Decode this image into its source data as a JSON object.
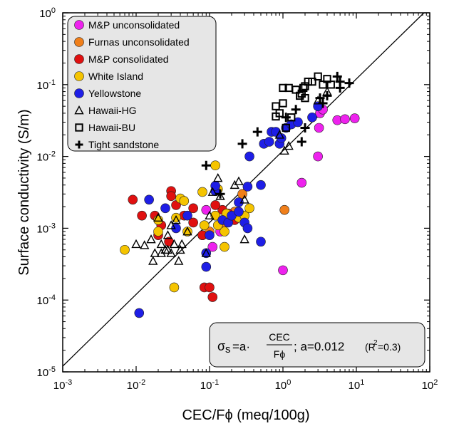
{
  "chart_data": {
    "type": "scatter",
    "xlabel": "CEC/Fϕ (meq/100g)",
    "ylabel": "Surface conductivity (S/m)",
    "xscale": "log",
    "yscale": "log",
    "xlim": [
      0.001,
      100
    ],
    "ylim": [
      1e-05,
      1
    ],
    "grid": false,
    "legend_position": "top-left",
    "x_ticks": [
      {
        "base": "10",
        "exp": "-3",
        "value": 0.001
      },
      {
        "base": "10",
        "exp": "-2",
        "value": 0.01
      },
      {
        "base": "10",
        "exp": "-1",
        "value": 0.1
      },
      {
        "base": "10",
        "exp": "0",
        "value": 1
      },
      {
        "base": "10",
        "exp": "1",
        "value": 10
      },
      {
        "base": "10",
        "exp": "2",
        "value": 100
      }
    ],
    "y_ticks": [
      {
        "base": "10",
        "exp": "-5",
        "value": 1e-05
      },
      {
        "base": "10",
        "exp": "-4",
        "value": 0.0001
      },
      {
        "base": "10",
        "exp": "-3",
        "value": 0.001
      },
      {
        "base": "10",
        "exp": "-2",
        "value": 0.01
      },
      {
        "base": "10",
        "exp": "-1",
        "value": 0.1
      },
      {
        "base": "10",
        "exp": "0",
        "value": 1
      }
    ],
    "fit_line": {
      "a": 0.012,
      "x_range": [
        0.001,
        100
      ]
    },
    "annotation": {
      "sigma": "σ",
      "sub_s": "s",
      "eq_prefix": "=a·",
      "numerator": "CEC",
      "denominator": "Fϕ",
      "eq_suffix": "; a=0.012",
      "r2_prefix": "(R",
      "r2_sup": "2",
      "r2_suffix": "=0.3)"
    },
    "series": [
      {
        "name": "M&P unconsolidated",
        "marker": "circle",
        "color": "#ee22ee",
        "points": [
          [
            3.2,
            0.04
          ],
          [
            3.5,
            0.045
          ],
          [
            5.5,
            0.032
          ],
          [
            7.0,
            0.033
          ],
          [
            9.5,
            0.034
          ],
          [
            3.1,
            0.025
          ],
          [
            3.0,
            0.01
          ],
          [
            1.8,
            0.0043
          ],
          [
            1.0,
            0.00026
          ],
          [
            0.11,
            0.00055
          ],
          [
            0.14,
            0.0009
          ],
          [
            0.09,
            0.0018
          ],
          [
            0.08,
            0.0008
          ]
        ]
      },
      {
        "name": "Furnas unconsolidated",
        "marker": "circle",
        "color": "#f07f1a",
        "points": [
          [
            0.28,
            0.003
          ],
          [
            1.05,
            0.0018
          ],
          [
            0.16,
            0.0012
          ],
          [
            0.22,
            0.0017
          ],
          [
            0.1,
            0.0009
          ]
        ]
      },
      {
        "name": "M&P consolidated",
        "marker": "circle",
        "color": "#e01010",
        "points": [
          [
            0.009,
            0.0025
          ],
          [
            0.012,
            0.0015
          ],
          [
            0.018,
            0.0015
          ],
          [
            0.02,
            0.0008
          ],
          [
            0.022,
            0.0011
          ],
          [
            0.03,
            0.0033
          ],
          [
            0.03,
            0.0028
          ],
          [
            0.035,
            0.0021
          ],
          [
            0.045,
            0.0015
          ],
          [
            0.06,
            0.0019
          ],
          [
            0.06,
            0.0012
          ],
          [
            0.085,
            0.00015
          ],
          [
            0.1,
            0.00015
          ],
          [
            0.11,
            0.00011
          ],
          [
            0.08,
            0.0008
          ],
          [
            0.15,
            0.0018
          ],
          [
            0.22,
            0.0013
          ],
          [
            0.18,
            0.0016
          ],
          [
            0.028,
            0.00065
          ],
          [
            0.3,
            0.0015
          ],
          [
            0.12,
            0.0021
          ]
        ]
      },
      {
        "name": "White Island",
        "marker": "circle",
        "color": "#f5c400",
        "points": [
          [
            0.007,
            0.0005
          ],
          [
            0.033,
            0.00015
          ],
          [
            0.035,
            0.0014
          ],
          [
            0.04,
            0.0026
          ],
          [
            0.045,
            0.0024
          ],
          [
            0.05,
            0.0009
          ],
          [
            0.08,
            0.0032
          ],
          [
            0.085,
            0.0011
          ],
          [
            0.12,
            0.0015
          ],
          [
            0.13,
            0.0035
          ],
          [
            0.13,
            0.0011
          ],
          [
            0.16,
            0.00055
          ],
          [
            0.17,
            0.0016
          ],
          [
            0.25,
            0.0014
          ],
          [
            0.3,
            0.0015
          ],
          [
            0.35,
            0.0019
          ],
          [
            0.12,
            0.0075
          ],
          [
            0.02,
            0.0013
          ],
          [
            0.02,
            0.0009
          ],
          [
            0.16,
            0.0009
          ]
        ]
      },
      {
        "name": "Yellowstone",
        "marker": "circle",
        "color": "#1e1ee6",
        "points": [
          [
            0.011,
            6.6e-05
          ],
          [
            0.015,
            0.0025
          ],
          [
            0.025,
            0.0019
          ],
          [
            0.035,
            0.001
          ],
          [
            0.05,
            0.0015
          ],
          [
            0.09,
            0.00045
          ],
          [
            0.09,
            0.00029
          ],
          [
            0.1,
            0.0008
          ],
          [
            0.12,
            0.0033
          ],
          [
            0.12,
            0.0039
          ],
          [
            0.15,
            0.0013
          ],
          [
            0.18,
            0.0012
          ],
          [
            0.2,
            0.0015
          ],
          [
            0.25,
            0.0017
          ],
          [
            0.25,
            0.0023
          ],
          [
            0.3,
            0.0012
          ],
          [
            0.33,
            0.001
          ],
          [
            0.33,
            0.0038
          ],
          [
            0.35,
            0.01
          ],
          [
            0.5,
            0.004
          ],
          [
            0.5,
            0.00065
          ],
          [
            0.55,
            0.015
          ],
          [
            0.7,
            0.022
          ],
          [
            0.8,
            0.022
          ],
          [
            0.9,
            0.015
          ],
          [
            0.95,
            0.018
          ],
          [
            1.1,
            0.025
          ],
          [
            1.3,
            0.028
          ],
          [
            1.6,
            0.03
          ],
          [
            2.5,
            0.035
          ],
          [
            3.0,
            0.05
          ],
          [
            0.65,
            0.016
          ]
        ]
      },
      {
        "name": "Hawaii-HG",
        "marker": "triangle",
        "color": "#000000",
        "points": [
          [
            0.01,
            0.0006
          ],
          [
            0.013,
            0.00058
          ],
          [
            0.016,
            0.0007
          ],
          [
            0.017,
            0.00035
          ],
          [
            0.018,
            0.00045
          ],
          [
            0.02,
            0.0014
          ],
          [
            0.022,
            0.00045
          ],
          [
            0.025,
            0.0005
          ],
          [
            0.027,
            0.0008
          ],
          [
            0.03,
            0.0011
          ],
          [
            0.03,
            0.00045
          ],
          [
            0.033,
            0.0006
          ],
          [
            0.035,
            0.0013
          ],
          [
            0.038,
            0.00035
          ],
          [
            0.04,
            0.0005
          ],
          [
            0.042,
            0.0006
          ],
          [
            0.05,
            0.0009
          ],
          [
            0.022,
            0.0006
          ],
          [
            0.027,
            0.0005
          ],
          [
            0.09,
            0.00045
          ],
          [
            0.1,
            0.0015
          ],
          [
            0.11,
            0.0032
          ],
          [
            0.13,
            0.005
          ],
          [
            0.14,
            0.0028
          ],
          [
            0.22,
            0.004
          ],
          [
            0.25,
            0.0045
          ],
          [
            0.3,
            0.0007
          ],
          [
            0.3,
            0.0025
          ],
          [
            1.05,
            0.012
          ],
          [
            1.2,
            0.014
          ],
          [
            3.0,
            0.06
          ],
          [
            4.0,
            0.08
          ],
          [
            0.9,
            0.02
          ]
        ]
      },
      {
        "name": "Hawaii-BU",
        "marker": "square",
        "color": "#000000",
        "points": [
          [
            0.8,
            0.036
          ],
          [
            0.8,
            0.05
          ],
          [
            0.9,
            0.04
          ],
          [
            1.0,
            0.09
          ],
          [
            1.0,
            0.055
          ],
          [
            1.1,
            0.025
          ],
          [
            1.2,
            0.09
          ],
          [
            1.3,
            0.035
          ],
          [
            1.5,
            0.085
          ],
          [
            1.7,
            0.07
          ],
          [
            1.8,
            0.075
          ],
          [
            2.0,
            0.095
          ],
          [
            2.2,
            0.11
          ],
          [
            2.5,
            0.11
          ],
          [
            3.0,
            0.13
          ],
          [
            3.5,
            0.1
          ],
          [
            4.0,
            0.12
          ],
          [
            4.5,
            0.1
          ],
          [
            1.9,
            0.09
          ],
          [
            2.0,
            0.065
          ]
        ]
      },
      {
        "name": "Tight sandstone",
        "marker": "plus",
        "color": "#000000",
        "points": [
          [
            0.09,
            0.0075
          ],
          [
            0.14,
            0.003
          ],
          [
            0.28,
            0.015
          ],
          [
            0.45,
            0.022
          ],
          [
            1.1,
            0.035
          ],
          [
            1.5,
            0.045
          ],
          [
            1.8,
            0.016
          ],
          [
            2.0,
            0.025
          ],
          [
            3.2,
            0.065
          ],
          [
            3.5,
            0.055
          ],
          [
            4.0,
            0.07
          ],
          [
            5.5,
            0.13
          ],
          [
            6.0,
            0.09
          ],
          [
            6.0,
            0.11
          ],
          [
            8.0,
            0.105
          ]
        ]
      }
    ]
  }
}
